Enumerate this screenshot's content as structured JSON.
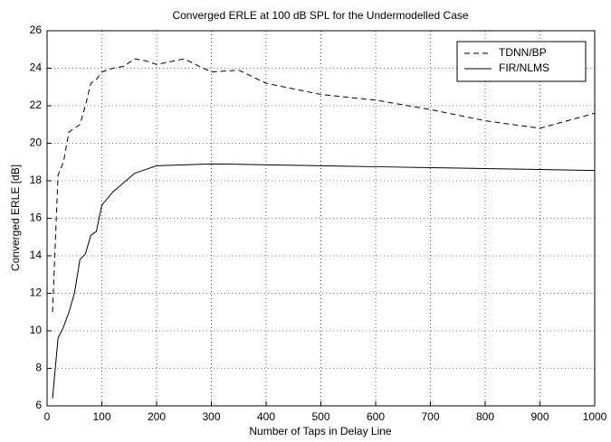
{
  "chart_data": {
    "type": "line",
    "title": "Converged ERLE at 100 dB SPL for the Undermodelled Case",
    "x_label": "Number of Taps in Delay Line",
    "y_label": "Converged ERLE [dB]",
    "x": [
      10,
      20,
      30,
      40,
      50,
      60,
      70,
      80,
      90,
      100,
      120,
      140,
      160,
      180,
      200,
      250,
      300,
      350,
      400,
      500,
      600,
      700,
      800,
      900,
      1000
    ],
    "series": [
      {
        "name": "TDNN/BP",
        "color": "#000000",
        "dash": "dashed",
        "values": [
          11,
          18.3,
          19,
          20.6,
          20.8,
          21,
          22,
          23.2,
          23.4,
          23.8,
          24,
          24.1,
          24.5,
          24.4,
          24.2,
          24.5,
          23.8,
          23.9,
          23.2,
          22.6,
          22.3,
          21.8,
          21.2,
          20.8,
          21.6
        ]
      },
      {
        "name": "FIR/NLMS",
        "color": "#000000",
        "dash": "solid",
        "values": [
          6.4,
          9.6,
          10.2,
          11,
          12,
          13.8,
          14.1,
          15.1,
          15.3,
          16.7,
          17.4,
          17.9,
          18.4,
          18.6,
          18.8,
          18.85,
          18.9,
          18.88,
          18.85,
          18.8,
          18.75,
          18.7,
          18.65,
          18.6,
          18.55
        ]
      }
    ],
    "xlim": [
      0,
      1000
    ],
    "xticks": [
      0,
      100,
      200,
      300,
      400,
      500,
      600,
      700,
      800,
      900,
      1000
    ],
    "ylim": [
      6,
      26
    ],
    "yticks": [
      6,
      8,
      10,
      12,
      14,
      16,
      18,
      20,
      22,
      24,
      26
    ],
    "grid": true,
    "legend": "upper-right"
  }
}
